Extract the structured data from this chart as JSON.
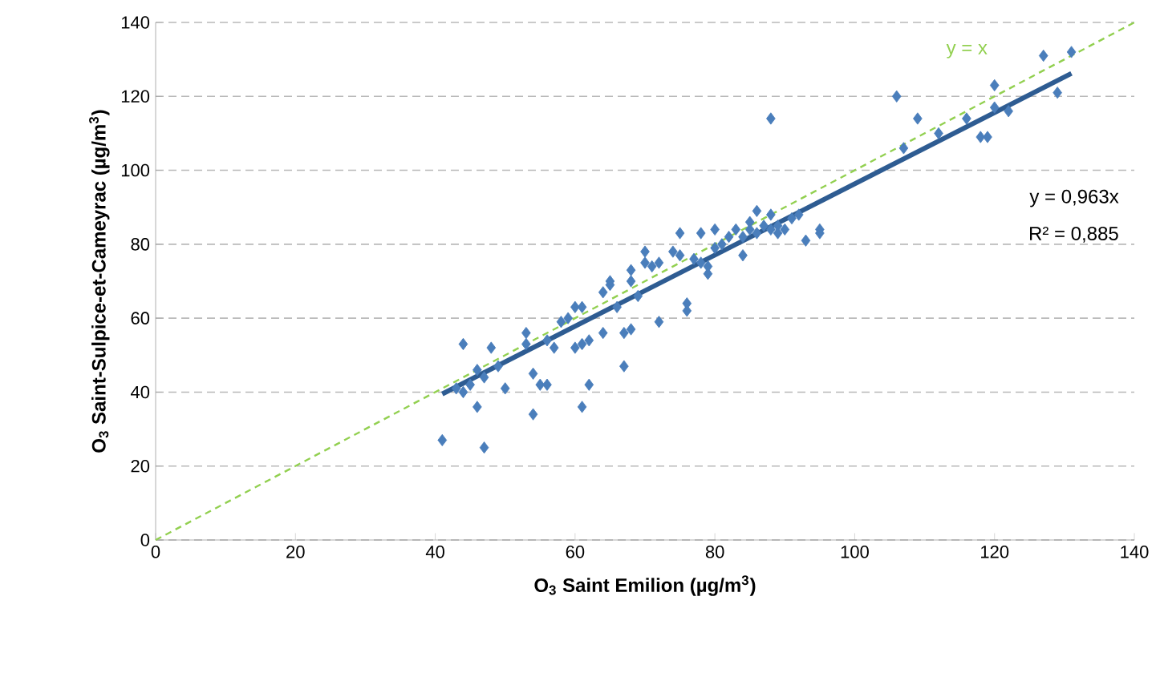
{
  "chart_data": {
    "type": "scatter",
    "xlabel": "**O$_{3}$ Saint Emilion  (µg/m$^{3}$)**",
    "ylabel": "**O$_{3}$ Saint-Sulpice-et-Cameyrac  (µg/m$^{3}$)**",
    "xlim": [
      0,
      140
    ],
    "ylim": [
      0,
      140
    ],
    "xticks": [
      0,
      20,
      40,
      60,
      80,
      100,
      120,
      140
    ],
    "yticks": [
      0,
      20,
      40,
      60,
      80,
      100,
      120,
      140
    ],
    "grid": "y",
    "legend": false,
    "annotations": [
      "y = 0,963x",
      "R² = 0,885"
    ],
    "series": [
      {
        "color": "#4a7ebb",
        "marker": "diamond",
        "x": [
          41,
          43,
          44,
          44,
          45,
          46,
          46,
          47,
          47,
          48,
          49,
          50,
          53,
          53,
          54,
          54,
          55,
          56,
          56,
          57,
          58,
          59,
          60,
          60,
          61,
          61,
          62,
          61,
          62,
          64,
          64,
          65,
          65,
          66,
          67,
          67,
          68,
          68,
          68,
          69,
          70,
          70,
          71,
          72,
          72,
          74,
          75,
          75,
          76,
          76,
          77,
          78,
          78,
          79,
          79,
          80,
          80,
          81,
          82,
          83,
          84,
          84,
          85,
          85,
          86,
          86,
          87,
          88,
          88,
          88,
          89,
          89,
          90,
          91,
          92,
          93,
          95,
          95,
          106,
          107,
          109,
          112,
          116,
          118,
          119,
          120,
          120,
          122,
          127,
          129,
          131
        ],
        "values": [
          27,
          41,
          53,
          40,
          42,
          46,
          36,
          25,
          44,
          52,
          47,
          41,
          53,
          56,
          45,
          34,
          42,
          42,
          54,
          52,
          59,
          60,
          52,
          63,
          36,
          63,
          42,
          53,
          54,
          56,
          67,
          69,
          70,
          63,
          47,
          56,
          57,
          70,
          73,
          66,
          75,
          78,
          74,
          75,
          59,
          78,
          83,
          77,
          62,
          64,
          76,
          83,
          75,
          72,
          74,
          84,
          79,
          80,
          82,
          84,
          77,
          82,
          86,
          84,
          89,
          83,
          85,
          84,
          114,
          88,
          85,
          83,
          84,
          87,
          88,
          81,
          84,
          83,
          120,
          106,
          114,
          110,
          114,
          109,
          109,
          123,
          117,
          116,
          131,
          121,
          132
        ]
      },
      {
        "type": "line",
        "color": "#2e5c92",
        "line_style": "solid",
        "marker": "none",
        "x": [
          41,
          131
        ],
        "values": [
          39.5,
          126.2
        ]
      },
      {
        "type": "line",
        "name": "y = x",
        "color": "#92d050",
        "line_style": "dashed",
        "marker": "none",
        "x": [
          0,
          140
        ],
        "values": [
          0,
          140
        ]
      }
    ]
  }
}
